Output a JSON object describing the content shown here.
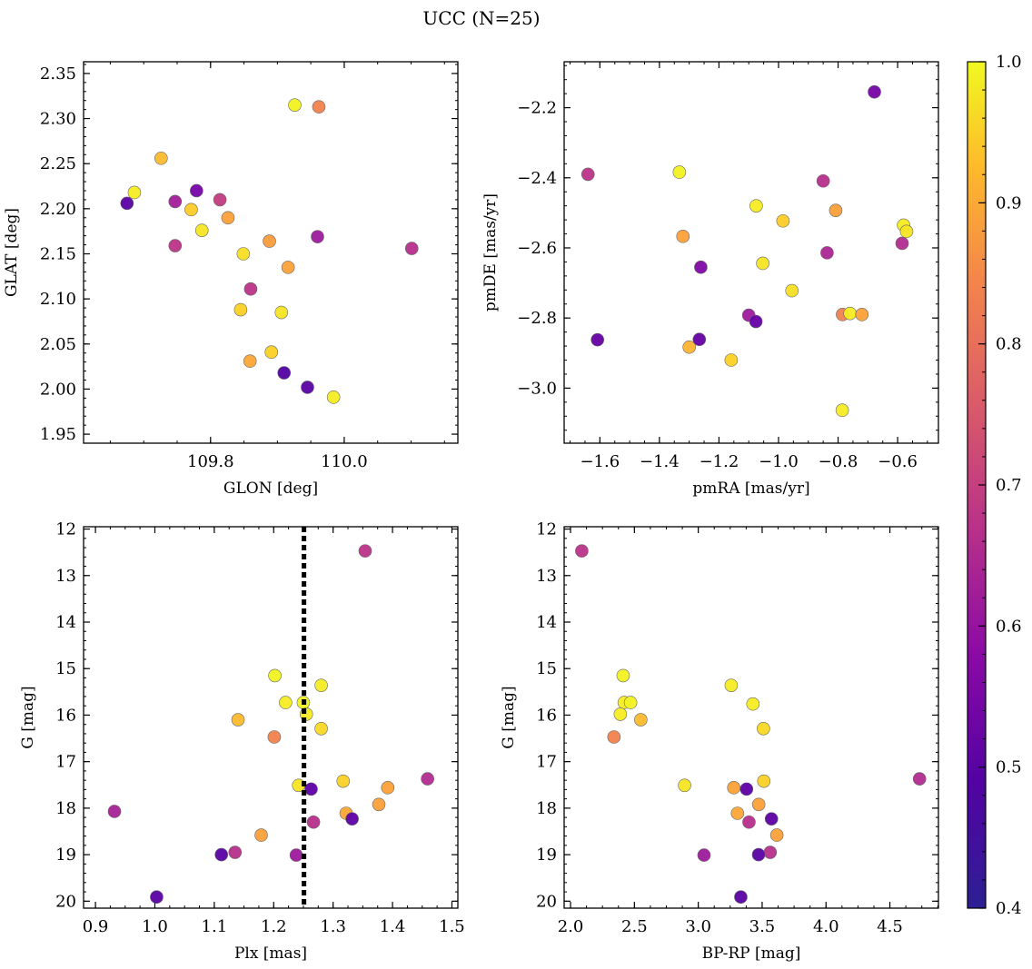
{
  "figure": {
    "suptitle": "UCC (N=25)"
  },
  "colorbar": {
    "range": [
      0.4,
      1.0
    ],
    "ticks": [
      0.4,
      0.5,
      0.6,
      0.7,
      0.8,
      0.9,
      1.0
    ],
    "tick_labels": [
      "0.4",
      "0.5",
      "0.6",
      "0.7",
      "0.8",
      "0.9",
      "1.0"
    ],
    "colormap": "plasma",
    "colors": [
      "#2c2093",
      "#7a0eaa",
      "#bc3a86",
      "#e56a5e",
      "#fba23a",
      "#f5e41f",
      "#f0f921"
    ]
  },
  "chart_data": [
    {
      "type": "scatter",
      "title": "",
      "xlabel": "GLON [deg]",
      "ylabel": "GLAT [deg]",
      "xlim": [
        109.61,
        110.17
      ],
      "ylim": [
        1.94,
        2.363
      ],
      "xticks": [
        109.8,
        110.0
      ],
      "xtick_labels": [
        "109.8",
        "110.0"
      ],
      "yticks": [
        1.95,
        2.0,
        2.05,
        2.1,
        2.15,
        2.2,
        2.25,
        2.3,
        2.35
      ],
      "ytick_labels": [
        "1.95",
        "2.00",
        "2.05",
        "2.10",
        "2.15",
        "2.20",
        "2.25",
        "2.30",
        "2.35"
      ],
      "points": [
        {
          "x": 109.926,
          "y": 2.315,
          "c": 0.99
        },
        {
          "x": 109.962,
          "y": 2.313,
          "c": 0.8
        },
        {
          "x": 109.726,
          "y": 2.256,
          "c": 0.9
        },
        {
          "x": 109.686,
          "y": 2.218,
          "c": 0.98
        },
        {
          "x": 109.675,
          "y": 2.206,
          "c": 0.45
        },
        {
          "x": 109.747,
          "y": 2.208,
          "c": 0.58
        },
        {
          "x": 109.779,
          "y": 2.22,
          "c": 0.5
        },
        {
          "x": 109.814,
          "y": 2.21,
          "c": 0.65
        },
        {
          "x": 109.771,
          "y": 2.199,
          "c": 0.93
        },
        {
          "x": 109.826,
          "y": 2.19,
          "c": 0.86
        },
        {
          "x": 109.787,
          "y": 2.176,
          "c": 0.97
        },
        {
          "x": 109.96,
          "y": 2.169,
          "c": 0.57
        },
        {
          "x": 109.888,
          "y": 2.164,
          "c": 0.85
        },
        {
          "x": 109.747,
          "y": 2.159,
          "c": 0.63
        },
        {
          "x": 110.101,
          "y": 2.156,
          "c": 0.62
        },
        {
          "x": 109.849,
          "y": 2.15,
          "c": 0.96
        },
        {
          "x": 109.916,
          "y": 2.135,
          "c": 0.86
        },
        {
          "x": 109.86,
          "y": 2.111,
          "c": 0.63
        },
        {
          "x": 109.845,
          "y": 2.088,
          "c": 0.94
        },
        {
          "x": 109.906,
          "y": 2.085,
          "c": 0.97
        },
        {
          "x": 109.891,
          "y": 2.041,
          "c": 0.94
        },
        {
          "x": 109.859,
          "y": 2.031,
          "c": 0.87
        },
        {
          "x": 109.91,
          "y": 2.018,
          "c": 0.44
        },
        {
          "x": 109.945,
          "y": 2.002,
          "c": 0.45
        },
        {
          "x": 109.984,
          "y": 1.991,
          "c": 0.98
        }
      ]
    },
    {
      "type": "scatter",
      "title": "",
      "xlabel": "pmRA [mas/yr]",
      "ylabel": "pmDE [mas/yr]",
      "xlim": [
        -1.72,
        -0.463
      ],
      "ylim": [
        -3.157,
        -2.069
      ],
      "xticks": [
        -1.6,
        -1.4,
        -1.2,
        -1.0,
        -0.8,
        -0.6
      ],
      "xtick_labels": [
        "−1.6",
        "−1.4",
        "−1.2",
        "−1.0",
        "−0.8",
        "−0.6"
      ],
      "yticks": [
        -3.0,
        -2.8,
        -2.6,
        -2.4,
        -2.2
      ],
      "ytick_labels": [
        "−3.0",
        "−2.8",
        "−2.6",
        "−2.4",
        "−2.2"
      ],
      "points": [
        {
          "x": -0.678,
          "y": -2.155,
          "c": 0.5
        },
        {
          "x": -1.64,
          "y": -2.39,
          "c": 0.63
        },
        {
          "x": -1.333,
          "y": -2.384,
          "c": 0.99
        },
        {
          "x": -0.85,
          "y": -2.409,
          "c": 0.62
        },
        {
          "x": -1.075,
          "y": -2.48,
          "c": 0.98
        },
        {
          "x": -0.808,
          "y": -2.493,
          "c": 0.86
        },
        {
          "x": -0.985,
          "y": -2.523,
          "c": 0.93
        },
        {
          "x": -0.58,
          "y": -2.535,
          "c": 0.98
        },
        {
          "x": -0.57,
          "y": -2.553,
          "c": 0.97
        },
        {
          "x": -1.321,
          "y": -2.567,
          "c": 0.86
        },
        {
          "x": -0.585,
          "y": -2.587,
          "c": 0.61
        },
        {
          "x": -0.837,
          "y": -2.614,
          "c": 0.6
        },
        {
          "x": -1.053,
          "y": -2.644,
          "c": 0.97
        },
        {
          "x": -1.261,
          "y": -2.655,
          "c": 0.52
        },
        {
          "x": -0.955,
          "y": -2.722,
          "c": 0.96
        },
        {
          "x": -1.1,
          "y": -2.792,
          "c": 0.57
        },
        {
          "x": -0.785,
          "y": -2.79,
          "c": 0.8
        },
        {
          "x": -0.76,
          "y": -2.787,
          "c": 0.98
        },
        {
          "x": -0.72,
          "y": -2.79,
          "c": 0.86
        },
        {
          "x": -1.076,
          "y": -2.81,
          "c": 0.47
        },
        {
          "x": -1.608,
          "y": -2.862,
          "c": 0.47
        },
        {
          "x": -1.266,
          "y": -2.861,
          "c": 0.47
        },
        {
          "x": -1.3,
          "y": -2.883,
          "c": 0.89
        },
        {
          "x": -1.159,
          "y": -2.92,
          "c": 0.94
        },
        {
          "x": -0.786,
          "y": -3.063,
          "c": 0.98
        }
      ]
    },
    {
      "type": "scatter",
      "title": "",
      "xlabel": "Plx [mas]",
      "ylabel": "G [mag]",
      "xlim": [
        0.88,
        1.51
      ],
      "ylim": [
        20.15,
        11.95
      ],
      "y_inverted": true,
      "vline": 1.251,
      "xticks": [
        0.9,
        1.0,
        1.1,
        1.2,
        1.3,
        1.4,
        1.5
      ],
      "xtick_labels": [
        "0.9",
        "1.0",
        "1.1",
        "1.2",
        "1.3",
        "1.4",
        "1.5"
      ],
      "yticks": [
        12,
        13,
        14,
        15,
        16,
        17,
        18,
        19,
        20
      ],
      "ytick_labels": [
        "12",
        "13",
        "14",
        "15",
        "16",
        "17",
        "18",
        "19",
        "20"
      ],
      "points": [
        {
          "x": 1.354,
          "y": 12.47,
          "c": 0.63
        },
        {
          "x": 1.202,
          "y": 15.15,
          "c": 0.99
        },
        {
          "x": 1.28,
          "y": 15.36,
          "c": 0.98
        },
        {
          "x": 1.22,
          "y": 15.73,
          "c": 0.98
        },
        {
          "x": 1.25,
          "y": 15.73,
          "c": 0.99
        },
        {
          "x": 1.255,
          "y": 15.98,
          "c": 0.98
        },
        {
          "x": 1.14,
          "y": 16.1,
          "c": 0.9
        },
        {
          "x": 1.28,
          "y": 16.29,
          "c": 0.95
        },
        {
          "x": 1.201,
          "y": 16.47,
          "c": 0.8
        },
        {
          "x": 1.459,
          "y": 17.37,
          "c": 0.61
        },
        {
          "x": 1.317,
          "y": 17.42,
          "c": 0.94
        },
        {
          "x": 1.242,
          "y": 17.51,
          "c": 0.97
        },
        {
          "x": 1.392,
          "y": 17.56,
          "c": 0.86
        },
        {
          "x": 1.263,
          "y": 17.59,
          "c": 0.46
        },
        {
          "x": 1.377,
          "y": 17.92,
          "c": 0.86
        },
        {
          "x": 0.932,
          "y": 18.07,
          "c": 0.59
        },
        {
          "x": 1.322,
          "y": 18.11,
          "c": 0.87
        },
        {
          "x": 1.332,
          "y": 18.23,
          "c": 0.46
        },
        {
          "x": 1.267,
          "y": 18.3,
          "c": 0.62
        },
        {
          "x": 1.179,
          "y": 18.58,
          "c": 0.86
        },
        {
          "x": 1.135,
          "y": 18.95,
          "c": 0.62
        },
        {
          "x": 1.112,
          "y": 19.0,
          "c": 0.45
        },
        {
          "x": 1.238,
          "y": 19.01,
          "c": 0.57
        },
        {
          "x": 1.003,
          "y": 19.91,
          "c": 0.45
        }
      ]
    },
    {
      "type": "scatter",
      "title": "",
      "xlabel": "BP-RP [mag]",
      "ylabel": "G [mag]",
      "xlim": [
        1.95,
        4.88
      ],
      "ylim": [
        20.15,
        11.95
      ],
      "y_inverted": true,
      "xticks": [
        2.0,
        2.5,
        3.0,
        3.5,
        4.0,
        4.5
      ],
      "xtick_labels": [
        "2.0",
        "2.5",
        "3.0",
        "3.5",
        "4.0",
        "4.5"
      ],
      "yticks": [
        12,
        13,
        14,
        15,
        16,
        17,
        18,
        19,
        20
      ],
      "ytick_labels": [
        "12",
        "13",
        "14",
        "15",
        "16",
        "17",
        "18",
        "19",
        "20"
      ],
      "points": [
        {
          "x": 2.088,
          "y": 12.47,
          "c": 0.63
        },
        {
          "x": 2.412,
          "y": 15.15,
          "c": 0.99
        },
        {
          "x": 3.258,
          "y": 15.36,
          "c": 0.98
        },
        {
          "x": 2.42,
          "y": 15.73,
          "c": 0.98
        },
        {
          "x": 2.47,
          "y": 15.73,
          "c": 0.99
        },
        {
          "x": 3.428,
          "y": 15.76,
          "c": 0.98
        },
        {
          "x": 2.39,
          "y": 15.98,
          "c": 0.98
        },
        {
          "x": 2.55,
          "y": 16.1,
          "c": 0.9
        },
        {
          "x": 3.51,
          "y": 16.29,
          "c": 0.95
        },
        {
          "x": 2.34,
          "y": 16.47,
          "c": 0.8
        },
        {
          "x": 4.732,
          "y": 17.37,
          "c": 0.61
        },
        {
          "x": 3.513,
          "y": 17.42,
          "c": 0.94
        },
        {
          "x": 2.893,
          "y": 17.51,
          "c": 0.97
        },
        {
          "x": 3.278,
          "y": 17.56,
          "c": 0.86
        },
        {
          "x": 3.378,
          "y": 17.59,
          "c": 0.46
        },
        {
          "x": 3.473,
          "y": 17.92,
          "c": 0.86
        },
        {
          "x": 3.307,
          "y": 18.11,
          "c": 0.87
        },
        {
          "x": 3.573,
          "y": 18.23,
          "c": 0.46
        },
        {
          "x": 3.397,
          "y": 18.3,
          "c": 0.62
        },
        {
          "x": 3.615,
          "y": 18.58,
          "c": 0.86
        },
        {
          "x": 3.563,
          "y": 18.95,
          "c": 0.62
        },
        {
          "x": 3.472,
          "y": 19.0,
          "c": 0.45
        },
        {
          "x": 3.045,
          "y": 19.01,
          "c": 0.57
        },
        {
          "x": 3.333,
          "y": 19.91,
          "c": 0.45
        }
      ]
    }
  ]
}
